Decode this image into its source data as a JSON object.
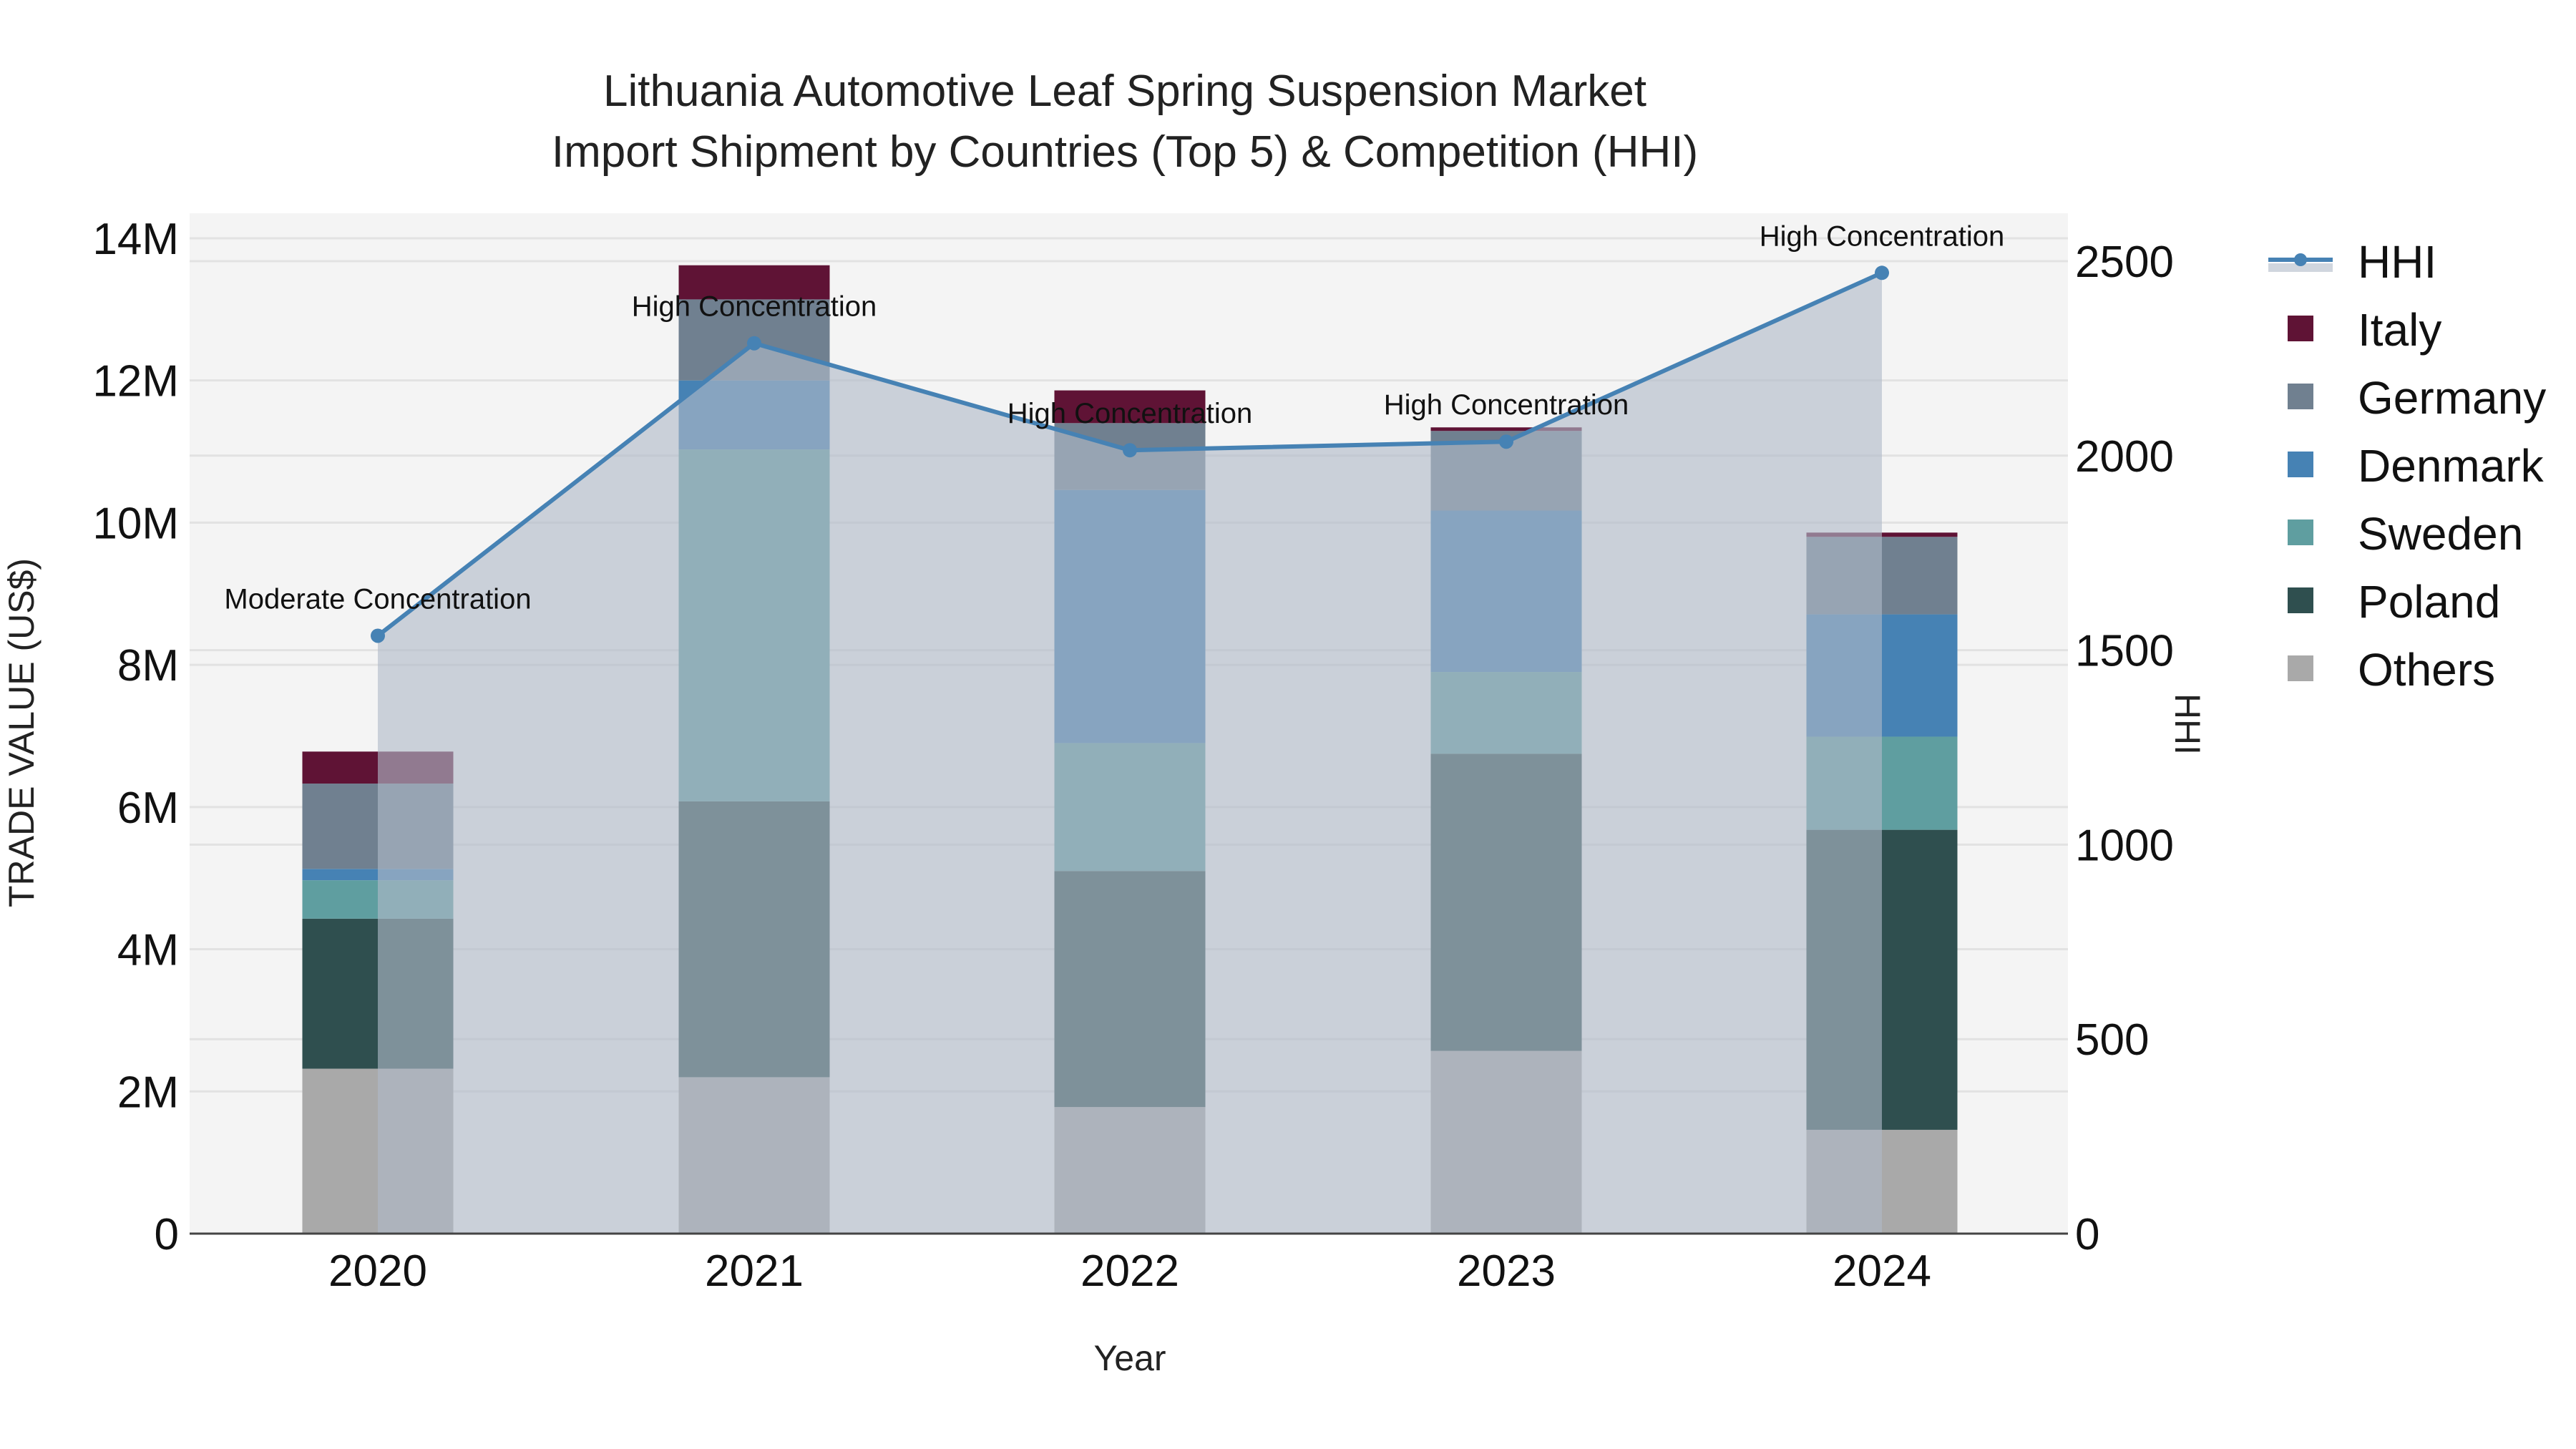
{
  "title": {
    "line1": "Lithuania Automotive Leaf Spring Suspension Market",
    "line2": "Import Shipment by Countries (Top 5) & Competition (HHI)"
  },
  "axes": {
    "x_title": "Year",
    "y_left_title": "TRADE VALUE (US$)",
    "y_right_title": "HHI",
    "y_left_ticks": [
      "0",
      "2M",
      "4M",
      "6M",
      "8M",
      "10M",
      "12M",
      "14M"
    ],
    "y_right_ticks": [
      "0",
      "500",
      "1000",
      "1500",
      "2000",
      "2500"
    ],
    "x_ticks": [
      "2020",
      "2021",
      "2022",
      "2023",
      "2024"
    ]
  },
  "legend": {
    "items": [
      {
        "label": "HHI",
        "type": "line",
        "color": "#4682b4"
      },
      {
        "label": "Italy",
        "type": "bar",
        "color": "#5f1335"
      },
      {
        "label": "Germany",
        "type": "bar",
        "color": "#708090"
      },
      {
        "label": "Denmark",
        "type": "bar",
        "color": "#4682b4"
      },
      {
        "label": "Sweden",
        "type": "bar",
        "color": "#5f9ea0"
      },
      {
        "label": "Poland",
        "type": "bar",
        "color": "#2f4f4f"
      },
      {
        "label": "Others",
        "type": "bar",
        "color": "#a9a9a9"
      }
    ]
  },
  "annotations": [
    {
      "year": "2020",
      "text": "Moderate Concentration"
    },
    {
      "year": "2021",
      "text": "High Concentration"
    },
    {
      "year": "2022",
      "text": "High Concentration"
    },
    {
      "year": "2023",
      "text": "High Concentration"
    },
    {
      "year": "2024",
      "text": "High Concentration"
    }
  ],
  "chart_data": {
    "type": "bar",
    "subtype": "stacked bar + line (secondary axis)",
    "title": "Lithuania Automotive Leaf Spring Suspension Market — Import Shipment by Countries (Top 5) & Competition (HHI)",
    "xlabel": "Year",
    "ylabel": "TRADE VALUE (US$)",
    "y2label": "HHI",
    "categories": [
      "2020",
      "2021",
      "2022",
      "2023",
      "2024"
    ],
    "ylim": [
      0,
      14400000
    ],
    "y2lim": [
      0,
      2600
    ],
    "grid": true,
    "legend_position": "right",
    "series": [
      {
        "name": "Others",
        "color": "#a9a9a9",
        "values": [
          2320000,
          2200000,
          1780000,
          2570000,
          1460000
        ]
      },
      {
        "name": "Poland",
        "color": "#2f4f4f",
        "values": [
          2110000,
          3880000,
          3320000,
          4180000,
          4220000
        ]
      },
      {
        "name": "Sweden",
        "color": "#5f9ea0",
        "values": [
          540000,
          4950000,
          1800000,
          1150000,
          1310000
        ]
      },
      {
        "name": "Denmark",
        "color": "#4682b4",
        "values": [
          160000,
          970000,
          3560000,
          2270000,
          1720000
        ]
      },
      {
        "name": "Germany",
        "color": "#708090",
        "values": [
          1200000,
          1140000,
          940000,
          1120000,
          1090000
        ]
      },
      {
        "name": "Italy",
        "color": "#5f1335",
        "values": [
          450000,
          480000,
          460000,
          50000,
          60000
        ]
      }
    ],
    "line_series": {
      "name": "HHI",
      "axis": "right",
      "color": "#4682b4",
      "values": [
        1537,
        2289,
        2014,
        2036,
        2470
      ],
      "labels": [
        "Moderate Concentration",
        "High Concentration",
        "High Concentration",
        "High Concentration",
        "High Concentration"
      ]
    }
  }
}
